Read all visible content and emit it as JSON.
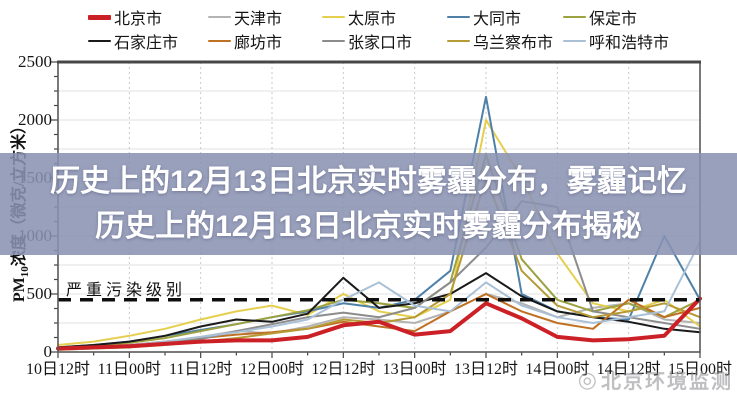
{
  "overlay": {
    "line1": "历史上的12月13日北京实时雾霾分布，雾霾记忆",
    "line2": "历史上的12月13日北京实时雾霾分布揭秘",
    "band_color": "rgba(138,146,178,0.87)",
    "text_color": "#ffffff"
  },
  "watermark": {
    "icon": "◎",
    "text": "北京环境监测"
  },
  "axis": {
    "y_label_prefix": "PM",
    "y_label_sub": "10",
    "y_label_suffix": "浓度（微克/立方米）"
  },
  "legend": {
    "items": [
      {
        "label": "北京市",
        "color": "#cc2027",
        "thick": true
      },
      {
        "label": "天津市",
        "color": "#b3b3b3",
        "thick": false
      },
      {
        "label": "太原市",
        "color": "#e6cf4e",
        "thick": false
      },
      {
        "label": "大同市",
        "color": "#4f81a8",
        "thick": false
      },
      {
        "label": "保定市",
        "color": "#9ca23f",
        "thick": false
      },
      {
        "label": "石家庄市",
        "color": "#1a1a1a",
        "thick": false
      },
      {
        "label": "廊坊市",
        "color": "#bf7022",
        "thick": false
      },
      {
        "label": "张家口市",
        "color": "#8c8c8c",
        "thick": false
      },
      {
        "label": "乌兰察布市",
        "color": "#b59a35",
        "thick": false
      },
      {
        "label": "呼和浩特市",
        "color": "#a9c0d6",
        "thick": false
      }
    ]
  },
  "chart_data": {
    "type": "line",
    "title": "",
    "xlabel": "",
    "ylabel": "PM10浓度（微克/立方米）",
    "ylim": [
      0,
      2500
    ],
    "y_ticks": [
      0,
      500,
      1000,
      1500,
      2000,
      2500
    ],
    "grid": true,
    "legend_position": "top",
    "x_tick_labels": [
      "10日12时",
      "11日00时",
      "11日12时",
      "12日00时",
      "12日12时",
      "13日00时",
      "13日12时",
      "14日00时",
      "14日12时",
      "15日00时"
    ],
    "x_tick_hours": [
      0,
      12,
      24,
      36,
      48,
      60,
      72,
      84,
      96,
      108
    ],
    "sample_hours": [
      0,
      6,
      12,
      18,
      24,
      30,
      36,
      42,
      48,
      54,
      60,
      66,
      72,
      78,
      84,
      90,
      96,
      102,
      108
    ],
    "threshold": {
      "label": "严重污染级别",
      "value": 450
    },
    "series": [
      {
        "name": "天津市",
        "color": "#b3b3b3",
        "width": 2,
        "values": [
          30,
          45,
          60,
          90,
          130,
          180,
          160,
          220,
          300,
          280,
          250,
          350,
          500,
          420,
          300,
          380,
          420,
          280,
          250
        ]
      },
      {
        "name": "太原市",
        "color": "#e6cf4e",
        "width": 2,
        "values": [
          60,
          90,
          140,
          200,
          280,
          350,
          400,
          320,
          500,
          350,
          300,
          450,
          2000,
          1500,
          850,
          420,
          350,
          450,
          220
        ]
      },
      {
        "name": "大同市",
        "color": "#4f81a8",
        "width": 2,
        "values": [
          40,
          60,
          90,
          140,
          190,
          240,
          300,
          350,
          420,
          380,
          450,
          700,
          2200,
          500,
          350,
          300,
          280,
          1000,
          450
        ]
      },
      {
        "name": "保定市",
        "color": "#9ca23f",
        "width": 2,
        "values": [
          30,
          50,
          80,
          120,
          180,
          240,
          300,
          360,
          450,
          420,
          380,
          600,
          1700,
          800,
          450,
          350,
          420,
          300,
          450
        ]
      },
      {
        "name": "石家庄市",
        "color": "#1a1a1a",
        "width": 2,
        "values": [
          40,
          60,
          90,
          140,
          220,
          280,
          260,
          330,
          640,
          380,
          420,
          500,
          680,
          480,
          350,
          300,
          260,
          200,
          170
        ]
      },
      {
        "name": "廊坊市",
        "color": "#bf7022",
        "width": 2,
        "values": [
          30,
          40,
          60,
          90,
          120,
          150,
          170,
          200,
          260,
          220,
          180,
          350,
          500,
          350,
          250,
          200,
          450,
          300,
          380
        ]
      },
      {
        "name": "张家口市",
        "color": "#8c8c8c",
        "width": 2,
        "values": [
          20,
          30,
          50,
          80,
          110,
          180,
          240,
          300,
          340,
          300,
          380,
          600,
          900,
          1300,
          1250,
          350,
          300,
          250,
          200
        ]
      },
      {
        "name": "乌兰察布市",
        "color": "#b59a35",
        "width": 2,
        "values": [
          20,
          30,
          40,
          60,
          90,
          120,
          160,
          200,
          280,
          250,
          300,
          500,
          1500,
          700,
          400,
          300,
          350,
          420,
          300
        ]
      },
      {
        "name": "呼和浩特市",
        "color": "#a9c0d6",
        "width": 2,
        "values": [
          30,
          40,
          60,
          90,
          130,
          170,
          220,
          280,
          450,
          600,
          400,
          350,
          600,
          400,
          300,
          250,
          300,
          350,
          950
        ]
      },
      {
        "name": "北京市",
        "color": "#cc2027",
        "width": 4,
        "values": [
          30,
          40,
          50,
          70,
          90,
          100,
          100,
          130,
          230,
          260,
          150,
          180,
          420,
          290,
          130,
          100,
          110,
          140,
          460
        ]
      }
    ]
  }
}
